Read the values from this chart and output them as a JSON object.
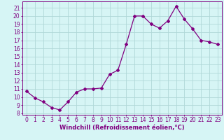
{
  "x": [
    0,
    1,
    2,
    3,
    4,
    5,
    6,
    7,
    8,
    9,
    10,
    11,
    12,
    13,
    14,
    15,
    16,
    17,
    18,
    19,
    20,
    21,
    22,
    23
  ],
  "y": [
    10.7,
    9.9,
    9.4,
    8.7,
    8.4,
    9.4,
    10.6,
    11.0,
    11.0,
    11.1,
    12.8,
    13.3,
    16.5,
    20.0,
    20.0,
    19.0,
    18.5,
    19.4,
    21.2,
    19.6,
    18.4,
    17.0,
    16.8,
    16.5
  ],
  "line_color": "#800080",
  "marker": "D",
  "marker_size": 2.0,
  "bg_color": "#d6f5f5",
  "grid_color": "#b0d8d8",
  "xlabel": "Windchill (Refroidissement éolien,°C)",
  "ylabel_ticks": [
    8,
    9,
    10,
    11,
    12,
    13,
    14,
    15,
    16,
    17,
    18,
    19,
    20,
    21
  ],
  "ylim": [
    7.8,
    21.8
  ],
  "xlim": [
    -0.5,
    23.5
  ],
  "tick_fontsize": 5.5,
  "xlabel_fontsize": 6.0,
  "linewidth": 0.9
}
